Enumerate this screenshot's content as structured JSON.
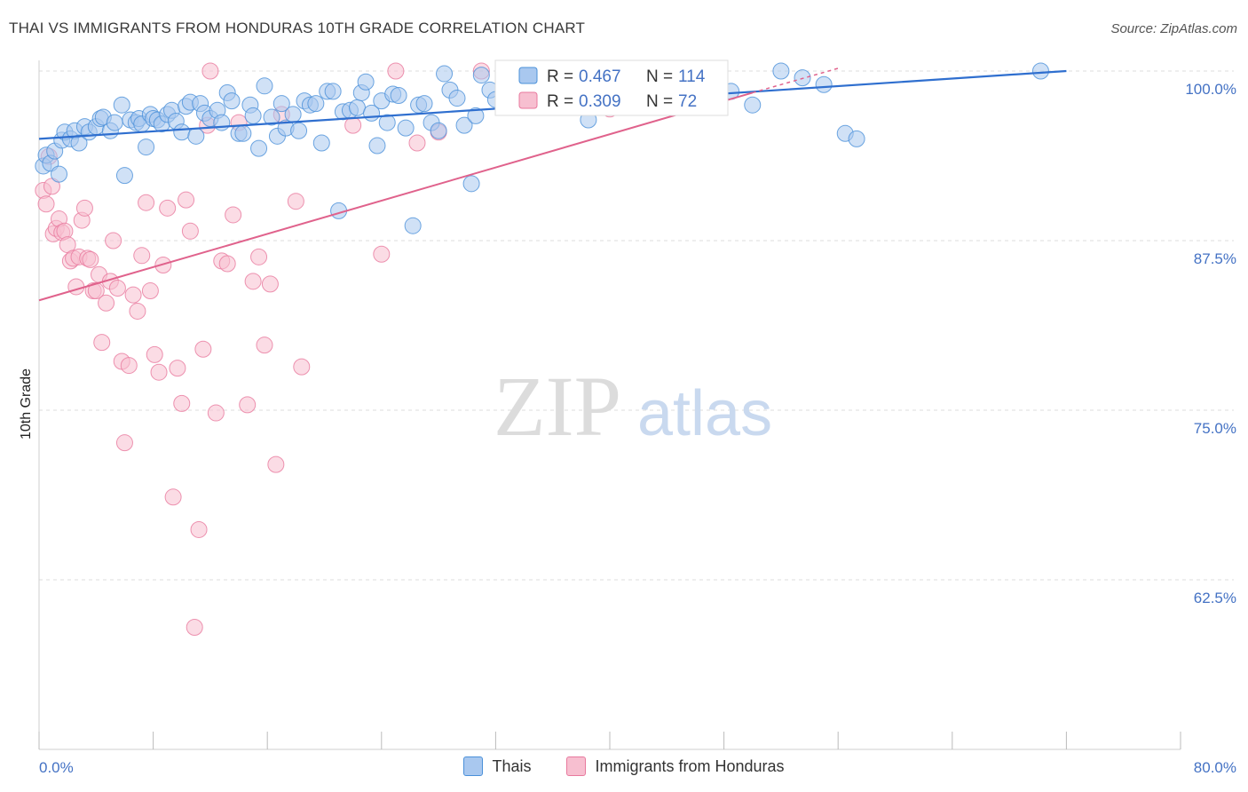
{
  "header": {
    "title": "THAI VS IMMIGRANTS FROM HONDURAS 10TH GRADE CORRELATION CHART",
    "source": "Source: ZipAtlas.com"
  },
  "colors": {
    "blue": "#4a90d9",
    "blue_fill": "#a9c8ef",
    "blue_line": "#2f6fcf",
    "pink": "#e8799e",
    "pink_fill": "#f7bfd0",
    "pink_line": "#e0628c",
    "tick_text": "#4472c4",
    "grid": "#dddddd"
  },
  "watermark": {
    "zip": "ZIP",
    "atlas": "atlas"
  },
  "stats_legend": {
    "r_label": "R = ",
    "n_label": "N = ",
    "series": [
      {
        "r": "0.467",
        "n": "114"
      },
      {
        "r": "0.309",
        "n": "72"
      }
    ]
  },
  "bottom_legend": [
    "Thais",
    "Immigrants from Honduras"
  ],
  "chart_data": {
    "type": "scatter",
    "title": "THAI VS IMMIGRANTS FROM HONDURAS 10TH GRADE CORRELATION CHART",
    "xlabel": "",
    "ylabel": "10th Grade",
    "xlim": [
      0,
      80
    ],
    "ylim": [
      50,
      100
    ],
    "x_ticks": [
      "0.0%",
      "80.0%"
    ],
    "y_ticks": [
      {
        "value": 100,
        "label": "100.0%"
      },
      {
        "value": 87.5,
        "label": "87.5%"
      },
      {
        "value": 75,
        "label": "75.0%"
      },
      {
        "value": 62.5,
        "label": "62.5%"
      }
    ],
    "grid": true,
    "legend": "bottom",
    "series": [
      {
        "name": "Thais",
        "color": "#4a90d9",
        "r": 0.467,
        "n": 114,
        "trend": {
          "x": [
            0,
            72
          ],
          "y": [
            95.0,
            100.0
          ]
        },
        "points": [
          [
            0.3,
            93.0
          ],
          [
            0.5,
            93.8
          ],
          [
            0.8,
            93.2
          ],
          [
            1.1,
            94.1
          ],
          [
            1.4,
            92.4
          ],
          [
            1.6,
            94.9
          ],
          [
            1.8,
            95.5
          ],
          [
            2.2,
            95.0
          ],
          [
            2.5,
            95.6
          ],
          [
            2.8,
            94.7
          ],
          [
            3.2,
            95.9
          ],
          [
            3.5,
            95.5
          ],
          [
            4.0,
            95.9
          ],
          [
            4.3,
            96.5
          ],
          [
            4.5,
            96.6
          ],
          [
            5.0,
            95.6
          ],
          [
            5.3,
            96.2
          ],
          [
            5.8,
            97.5
          ],
          [
            6.0,
            92.3
          ],
          [
            6.4,
            96.4
          ],
          [
            6.8,
            96.2
          ],
          [
            7.0,
            96.5
          ],
          [
            7.2,
            96.1
          ],
          [
            7.5,
            94.4
          ],
          [
            7.8,
            96.8
          ],
          [
            8.0,
            96.5
          ],
          [
            8.3,
            96.4
          ],
          [
            8.6,
            96.1
          ],
          [
            9.0,
            96.8
          ],
          [
            9.3,
            97.1
          ],
          [
            9.6,
            96.3
          ],
          [
            10.0,
            95.5
          ],
          [
            10.3,
            97.4
          ],
          [
            10.6,
            97.7
          ],
          [
            11.0,
            95.2
          ],
          [
            11.3,
            97.6
          ],
          [
            11.6,
            96.9
          ],
          [
            12.0,
            96.5
          ],
          [
            12.5,
            97.1
          ],
          [
            12.8,
            96.2
          ],
          [
            13.2,
            98.4
          ],
          [
            13.5,
            97.8
          ],
          [
            14.0,
            95.4
          ],
          [
            14.3,
            95.4
          ],
          [
            14.8,
            97.5
          ],
          [
            15.0,
            96.7
          ],
          [
            15.4,
            94.3
          ],
          [
            15.8,
            98.9
          ],
          [
            16.3,
            96.6
          ],
          [
            16.7,
            95.2
          ],
          [
            17.0,
            97.6
          ],
          [
            17.3,
            95.8
          ],
          [
            17.8,
            96.8
          ],
          [
            18.2,
            95.6
          ],
          [
            18.6,
            97.8
          ],
          [
            19.0,
            97.5
          ],
          [
            19.4,
            97.6
          ],
          [
            19.8,
            94.7
          ],
          [
            20.2,
            98.5
          ],
          [
            20.6,
            98.5
          ],
          [
            21.0,
            89.7
          ],
          [
            21.3,
            97.0
          ],
          [
            21.8,
            97.1
          ],
          [
            22.3,
            97.3
          ],
          [
            22.6,
            98.4
          ],
          [
            22.9,
            99.2
          ],
          [
            23.3,
            96.9
          ],
          [
            23.7,
            94.5
          ],
          [
            24.0,
            97.8
          ],
          [
            24.4,
            96.2
          ],
          [
            24.8,
            98.3
          ],
          [
            25.2,
            98.2
          ],
          [
            25.7,
            95.8
          ],
          [
            26.2,
            88.6
          ],
          [
            26.6,
            97.5
          ],
          [
            27.0,
            97.6
          ],
          [
            27.5,
            96.2
          ],
          [
            28.0,
            95.6
          ],
          [
            28.4,
            99.8
          ],
          [
            28.8,
            98.6
          ],
          [
            29.3,
            98.0
          ],
          [
            29.8,
            96.0
          ],
          [
            30.3,
            91.7
          ],
          [
            30.6,
            96.7
          ],
          [
            31.0,
            99.7
          ],
          [
            31.6,
            98.6
          ],
          [
            32.0,
            97.9
          ],
          [
            32.8,
            99.0
          ],
          [
            33.5,
            99.0
          ],
          [
            34.0,
            97.7
          ],
          [
            34.4,
            98.3
          ],
          [
            34.8,
            99.1
          ],
          [
            35.5,
            98.3
          ],
          [
            36.3,
            99.2
          ],
          [
            37.0,
            99.6
          ],
          [
            38.5,
            96.4
          ],
          [
            39.0,
            98.2
          ],
          [
            40.0,
            98.0
          ],
          [
            41.0,
            100.0
          ],
          [
            42.0,
            99.5
          ],
          [
            43.5,
            99.1
          ],
          [
            44.5,
            99.3
          ],
          [
            46.0,
            98.8
          ],
          [
            47.5,
            99.9
          ],
          [
            48.5,
            98.5
          ],
          [
            50.0,
            97.5
          ],
          [
            52.0,
            100.0
          ],
          [
            53.5,
            99.5
          ],
          [
            55.0,
            99.0
          ],
          [
            56.5,
            95.4
          ],
          [
            57.3,
            95.0
          ],
          [
            70.2,
            100.0
          ]
        ]
      },
      {
        "name": "Immigrants from Honduras",
        "color": "#e8799e",
        "r": 0.309,
        "n": 72,
        "trend": {
          "x": [
            0,
            50
          ],
          "y": [
            83.1,
            98.4
          ]
        },
        "trend_dashed": {
          "x": [
            50,
            56
          ],
          "y": [
            98.4,
            100.2
          ]
        },
        "points": [
          [
            0.3,
            91.2
          ],
          [
            0.5,
            90.2
          ],
          [
            0.7,
            93.7
          ],
          [
            0.9,
            91.5
          ],
          [
            1.0,
            88.0
          ],
          [
            1.2,
            88.4
          ],
          [
            1.4,
            89.1
          ],
          [
            1.6,
            88.1
          ],
          [
            1.8,
            88.2
          ],
          [
            2.0,
            87.2
          ],
          [
            2.2,
            86.0
          ],
          [
            2.4,
            86.2
          ],
          [
            2.6,
            84.1
          ],
          [
            2.8,
            86.3
          ],
          [
            3.0,
            89.0
          ],
          [
            3.2,
            89.9
          ],
          [
            3.4,
            86.2
          ],
          [
            3.6,
            86.1
          ],
          [
            3.8,
            83.8
          ],
          [
            4.0,
            83.8
          ],
          [
            4.2,
            85.0
          ],
          [
            4.4,
            80.0
          ],
          [
            4.7,
            82.9
          ],
          [
            5.0,
            84.5
          ],
          [
            5.2,
            87.5
          ],
          [
            5.5,
            84.0
          ],
          [
            5.8,
            78.6
          ],
          [
            6.0,
            72.6
          ],
          [
            6.3,
            78.3
          ],
          [
            6.6,
            83.5
          ],
          [
            6.9,
            82.3
          ],
          [
            7.2,
            86.4
          ],
          [
            7.5,
            90.3
          ],
          [
            7.8,
            83.8
          ],
          [
            8.1,
            79.1
          ],
          [
            8.4,
            77.8
          ],
          [
            8.7,
            85.7
          ],
          [
            9.0,
            89.9
          ],
          [
            9.4,
            68.6
          ],
          [
            9.7,
            78.1
          ],
          [
            10.0,
            75.5
          ],
          [
            10.3,
            90.5
          ],
          [
            10.6,
            88.2
          ],
          [
            10.9,
            59.0
          ],
          [
            11.2,
            66.2
          ],
          [
            11.5,
            79.5
          ],
          [
            11.8,
            96.0
          ],
          [
            12.0,
            100.0
          ],
          [
            12.4,
            74.8
          ],
          [
            12.8,
            86.0
          ],
          [
            13.2,
            85.8
          ],
          [
            13.6,
            89.4
          ],
          [
            14.0,
            96.2
          ],
          [
            14.6,
            75.4
          ],
          [
            15.0,
            84.5
          ],
          [
            15.4,
            86.3
          ],
          [
            15.8,
            79.8
          ],
          [
            16.2,
            84.3
          ],
          [
            16.6,
            71.0
          ],
          [
            17.0,
            96.8
          ],
          [
            18.0,
            90.4
          ],
          [
            18.4,
            78.2
          ],
          [
            22.0,
            96.0
          ],
          [
            24.0,
            86.5
          ],
          [
            25.0,
            100.0
          ],
          [
            26.5,
            94.7
          ],
          [
            28.0,
            95.5
          ],
          [
            31.0,
            100.0
          ],
          [
            33.0,
            100.0
          ],
          [
            36.0,
            99.3
          ],
          [
            40.0,
            97.2
          ],
          [
            47.0,
            98.2
          ]
        ]
      }
    ]
  }
}
